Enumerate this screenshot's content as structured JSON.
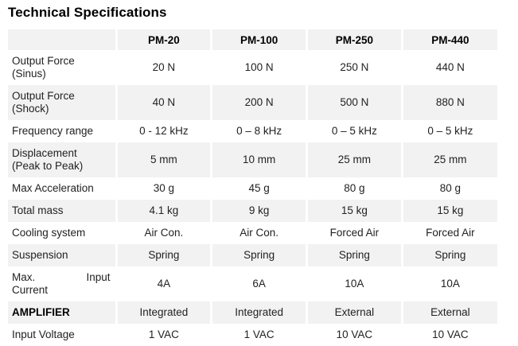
{
  "title": "Technical Specifications",
  "colors": {
    "row_shading": "#F2F2F2",
    "body_text": "#222222",
    "header_text": "#000000",
    "title_text": "#000000"
  },
  "table": {
    "header": [
      "",
      "PM-20",
      "PM-100",
      "PM-250",
      "PM-440"
    ],
    "rows": [
      {
        "label": "Output Force (Sinus)",
        "label_lines": [
          "Output Force",
          "(Sinus)"
        ],
        "bold": false,
        "values": [
          "20 N",
          "100 N",
          "250 N",
          "440 N"
        ]
      },
      {
        "label": "Output Force (Shock)",
        "label_lines": [
          "Output Force",
          "(Shock)"
        ],
        "bold": false,
        "values": [
          "40 N",
          "200 N",
          "500 N",
          "880 N"
        ]
      },
      {
        "label": "Frequency range",
        "label_lines": [
          "Frequency range"
        ],
        "bold": false,
        "values": [
          "0 - 12 kHz",
          "0 – 8 kHz",
          "0 – 5 kHz",
          "0 – 5 kHz"
        ]
      },
      {
        "label": "Displacement (Peak to Peak)",
        "label_lines": [
          "Displacement",
          "(Peak to Peak)"
        ],
        "bold": false,
        "values": [
          "5 mm",
          "10 mm",
          "25 mm",
          "25 mm"
        ]
      },
      {
        "label": "Max Acceleration",
        "label_lines": [
          "Max Acceleration"
        ],
        "bold": false,
        "values": [
          "30 g",
          "45 g",
          "80 g",
          "80 g"
        ]
      },
      {
        "label": "Total mass",
        "label_lines": [
          "Total mass"
        ],
        "bold": false,
        "values": [
          "4.1 kg",
          "9 kg",
          "15 kg",
          "15 kg"
        ]
      },
      {
        "label": "Cooling system",
        "label_lines": [
          "Cooling system"
        ],
        "bold": false,
        "values": [
          "Air Con.",
          "Air Con.",
          "Forced Air",
          "Forced Air"
        ]
      },
      {
        "label": "Suspension",
        "label_lines": [
          "Suspension"
        ],
        "bold": false,
        "values": [
          "Spring",
          "Spring",
          "Spring",
          "Spring"
        ]
      },
      {
        "label": "Max. Input Current",
        "label_lines": [
          "Max.\tInput",
          "Current"
        ],
        "bold": false,
        "values": [
          "4A",
          "6A",
          "10A",
          "10A"
        ]
      },
      {
        "label": "AMPLIFIER",
        "label_lines": [
          "AMPLIFIER"
        ],
        "bold": true,
        "values": [
          "Integrated",
          "Integrated",
          "External",
          "External"
        ]
      },
      {
        "label": "Input Voltage",
        "label_lines": [
          "Input Voltage"
        ],
        "bold": false,
        "values": [
          "1 VAC",
          "1 VAC",
          "10 VAC",
          "10 VAC"
        ]
      }
    ]
  }
}
